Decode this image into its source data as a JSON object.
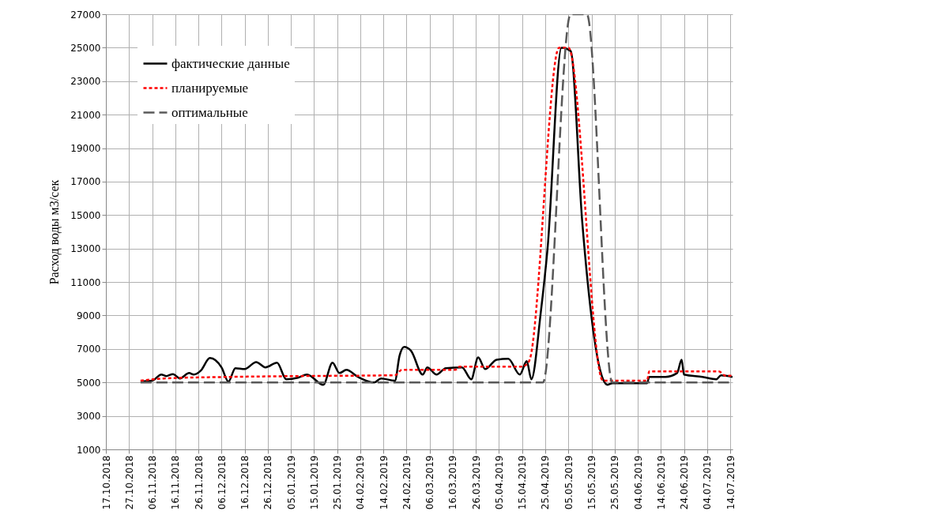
{
  "chart_data": {
    "type": "line",
    "ylabel": "Расход воды м3/сек",
    "xlim": [
      "2018-10-17",
      "2019-07-15"
    ],
    "ylim": [
      1000,
      27000
    ],
    "xticks": [
      {
        "value": "2018-10-17",
        "label": "17.10.2018"
      },
      {
        "value": "2018-10-27",
        "label": "27.10.2018"
      },
      {
        "value": "2018-11-06",
        "label": "06.11.2018"
      },
      {
        "value": "2018-11-16",
        "label": "16.11.2018"
      },
      {
        "value": "2018-11-26",
        "label": "26.11.2018"
      },
      {
        "value": "2018-12-06",
        "label": "06.12.2018"
      },
      {
        "value": "2018-12-16",
        "label": "16.12.2018"
      },
      {
        "value": "2018-12-26",
        "label": "26.12.2018"
      },
      {
        "value": "2019-01-05",
        "label": "05.01.2019"
      },
      {
        "value": "2019-01-15",
        "label": "15.01.2019"
      },
      {
        "value": "2019-01-25",
        "label": "25.01.2019"
      },
      {
        "value": "2019-02-04",
        "label": "04.02.2019"
      },
      {
        "value": "2019-02-14",
        "label": "14.02.2019"
      },
      {
        "value": "2019-02-24",
        "label": "24.02.2019"
      },
      {
        "value": "2019-03-06",
        "label": "06.03.2019"
      },
      {
        "value": "2019-03-16",
        "label": "16.03.2019"
      },
      {
        "value": "2019-03-26",
        "label": "26.03.2019"
      },
      {
        "value": "2019-04-05",
        "label": "05.04.2019"
      },
      {
        "value": "2019-04-15",
        "label": "15.04.2019"
      },
      {
        "value": "2019-04-25",
        "label": "25.04.2019"
      },
      {
        "value": "2019-05-05",
        "label": "05.05.2019"
      },
      {
        "value": "2019-05-15",
        "label": "15.05.2019"
      },
      {
        "value": "2019-05-25",
        "label": "25.05.2019"
      },
      {
        "value": "2019-06-04",
        "label": "04.06.2019"
      },
      {
        "value": "2019-06-14",
        "label": "14.06.2019"
      },
      {
        "value": "2019-06-24",
        "label": "24.06.2019"
      },
      {
        "value": "2019-07-04",
        "label": "04.07.2019"
      },
      {
        "value": "2019-07-14",
        "label": "14.07.2019"
      }
    ],
    "yticks": [
      1000,
      3000,
      5000,
      7000,
      9000,
      11000,
      13000,
      15000,
      17000,
      19000,
      21000,
      23000,
      25000,
      27000
    ],
    "grid": true,
    "legend": "top left",
    "series": [
      {
        "name": "фактические данные",
        "color": "#000000",
        "line_style": "solid",
        "x": [
          "2018-11-01",
          "2018-11-06",
          "2018-11-10",
          "2018-11-12",
          "2018-11-15",
          "2018-11-18",
          "2018-11-22",
          "2018-11-24",
          "2018-11-27",
          "2018-12-01",
          "2018-12-06",
          "2018-12-09",
          "2018-12-12",
          "2018-12-16",
          "2018-12-21",
          "2018-12-25",
          "2018-12-30",
          "2019-01-03",
          "2019-01-08",
          "2019-01-12",
          "2019-01-19",
          "2019-01-23",
          "2019-01-26",
          "2019-01-29",
          "2019-02-03",
          "2019-02-10",
          "2019-02-13",
          "2019-02-19",
          "2019-02-21",
          "2019-02-23",
          "2019-02-26",
          "2019-03-03",
          "2019-03-05",
          "2019-03-09",
          "2019-03-13",
          "2019-03-20",
          "2019-03-24",
          "2019-03-27",
          "2019-03-30",
          "2019-04-04",
          "2019-04-09",
          "2019-04-14",
          "2019-04-17",
          "2019-04-19",
          "2019-04-23",
          "2019-04-26",
          "2019-05-02",
          "2019-05-06",
          "2019-05-11",
          "2019-05-20",
          "2019-05-22",
          "2019-05-24",
          "2019-06-08",
          "2019-06-09",
          "2019-06-16",
          "2019-06-21",
          "2019-06-23",
          "2019-06-24",
          "2019-07-02",
          "2019-07-08",
          "2019-07-10",
          "2019-07-15"
        ],
        "values": [
          5050,
          5100,
          5470,
          5380,
          5500,
          5240,
          5560,
          5470,
          5700,
          6460,
          5900,
          5050,
          5850,
          5800,
          6220,
          5900,
          6180,
          5190,
          5280,
          5470,
          4860,
          6180,
          5560,
          5750,
          5330,
          5000,
          5240,
          5100,
          6600,
          7120,
          6880,
          5470,
          5900,
          5470,
          5850,
          5900,
          5190,
          6500,
          5800,
          6360,
          6410,
          5470,
          6270,
          5190,
          9100,
          13000,
          25000,
          24800,
          14600,
          5190,
          4860,
          4950,
          4950,
          5330,
          5330,
          5560,
          6360,
          5470,
          5330,
          5190,
          5420,
          5330
        ]
      },
      {
        "name": "планируемые",
        "color": "#ff0000",
        "line_style": "dotted",
        "x": [
          "2018-11-01",
          "2018-11-11",
          "2018-12-09",
          "2019-01-08",
          "2019-02-19",
          "2019-02-22",
          "2019-03-17",
          "2019-03-19",
          "2019-04-15",
          "2019-04-18",
          "2019-05-01",
          "2019-05-05",
          "2019-05-20",
          "2019-06-08",
          "2019-06-09",
          "2019-07-09",
          "2019-07-12",
          "2019-07-15"
        ],
        "values": [
          5100,
          5240,
          5330,
          5380,
          5430,
          5750,
          5750,
          5940,
          5940,
          6270,
          25000,
          25000,
          5100,
          5100,
          5660,
          5660,
          5400,
          5400
        ]
      },
      {
        "name": "оптимальные",
        "color": "#595959",
        "line_style": "dashed",
        "x": [
          "2018-11-01",
          "2019-04-24",
          "2019-05-06",
          "2019-05-13",
          "2019-05-24",
          "2019-07-15"
        ],
        "values": [
          5000,
          5000,
          27000,
          27000,
          5000,
          5000
        ]
      }
    ]
  }
}
